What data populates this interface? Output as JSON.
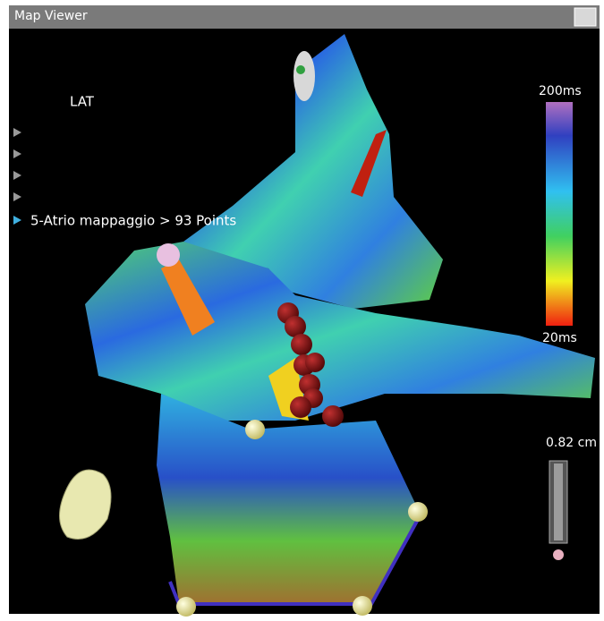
{
  "window": {
    "title": "Map Viewer"
  },
  "map": {
    "mode": "LAT",
    "active_layer": "5-Atrio mappaggio > 93 Points"
  },
  "color_scale": {
    "max_label": "200ms",
    "min_label": "20ms"
  },
  "scale_bar": {
    "label": "0.82 cm"
  }
}
